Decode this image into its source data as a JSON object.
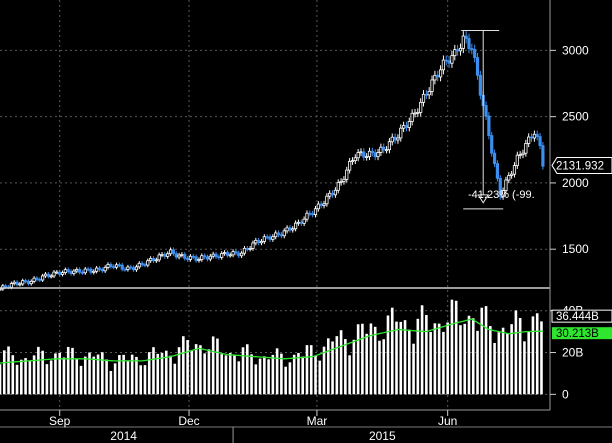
{
  "chart_data": [
    {
      "type": "candlestick",
      "panel": "price",
      "y_ticks": [
        "3000",
        "2500",
        "2000",
        "1500"
      ],
      "y_tick_values": [
        3000,
        2500,
        2000,
        1500
      ],
      "ylim": [
        1230,
        3380
      ],
      "last_value_label": "2131.932",
      "last_value": 2131.932,
      "annotation": {
        "text": "-41.23% (-99.",
        "from_value": 3150,
        "to_value": 1850,
        "from_date": "2015-06-12",
        "to_date": "2015-07-08"
      },
      "grid": true,
      "x": [
        "2014-07-21",
        "2014-07-31",
        "2014-08-10",
        "2014-08-20",
        "2014-08-30",
        "2014-09-09",
        "2014-09-19",
        "2014-09-29",
        "2014-10-09",
        "2014-10-19",
        "2014-10-29",
        "2014-11-08",
        "2014-11-18",
        "2014-11-28",
        "2014-12-08",
        "2014-12-18",
        "2014-12-28",
        "2015-01-07",
        "2015-01-17",
        "2015-01-27",
        "2015-02-06",
        "2015-02-16",
        "2015-02-26",
        "2015-03-08",
        "2015-03-18",
        "2015-03-28",
        "2015-04-07",
        "2015-04-17",
        "2015-04-27",
        "2015-05-07",
        "2015-05-17",
        "2015-05-27",
        "2015-06-06",
        "2015-06-12",
        "2015-06-18",
        "2015-06-24",
        "2015-06-30",
        "2015-07-06",
        "2015-07-08",
        "2015-07-14",
        "2015-07-20",
        "2015-07-26",
        "2015-08-01",
        "2015-08-05",
        "2015-08-07"
      ],
      "values": [
        1200,
        1230,
        1260,
        1300,
        1310,
        1330,
        1350,
        1340,
        1370,
        1360,
        1390,
        1420,
        1480,
        1450,
        1420,
        1440,
        1480,
        1470,
        1540,
        1600,
        1640,
        1680,
        1780,
        1900,
        2000,
        2200,
        2230,
        2260,
        2340,
        2500,
        2700,
        2850,
        2960,
        3100,
        3050,
        2700,
        2350,
        2000,
        1900,
        2050,
        2200,
        2300,
        2380,
        2250,
        2132
      ]
    },
    {
      "type": "bar",
      "panel": "volume",
      "y_ticks": [
        "40B",
        "20B",
        "0"
      ],
      "y_tick_values": [
        40,
        20,
        0
      ],
      "ylim": [
        -7.5,
        48
      ],
      "last_value_labels": [
        "36.444B",
        "30.213B"
      ],
      "last_values": [
        36.444,
        30.213
      ],
      "x_tick_labels": [
        "Sep",
        "Dec",
        "Mar",
        "Jun"
      ],
      "x_tick_dates": [
        "2014-09-01",
        "2014-12-01",
        "2015-03-01",
        "2015-06-01"
      ],
      "year_labels": [
        "2014",
        "2015"
      ],
      "year_dates": [
        "2014-10-16",
        "2015-04-16"
      ],
      "year_divider_dates": [
        "2015-01-01"
      ],
      "x": [
        "2014-07-21",
        "2014-08-10",
        "2014-08-30",
        "2014-09-19",
        "2014-10-09",
        "2014-10-29",
        "2014-11-18",
        "2014-12-08",
        "2014-12-28",
        "2015-01-17",
        "2015-02-06",
        "2015-02-26",
        "2015-03-18",
        "2015-04-07",
        "2015-04-27",
        "2015-05-17",
        "2015-06-06",
        "2015-06-18",
        "2015-06-30",
        "2015-07-14",
        "2015-07-26",
        "2015-08-07"
      ],
      "values": [
        18,
        17,
        19,
        18,
        16,
        17,
        20,
        24,
        20,
        18,
        17,
        20,
        26,
        30,
        34,
        33,
        36,
        38,
        32,
        30,
        34,
        36.4
      ],
      "moving_average": [
        15,
        16,
        17,
        17,
        16,
        16,
        18,
        22,
        19,
        18,
        17,
        18,
        23,
        28,
        31,
        30,
        34,
        36,
        31,
        29,
        30,
        30.2
      ],
      "colors": {
        "bars": "#ffffff",
        "moving_average": "#2ee62e"
      }
    }
  ]
}
